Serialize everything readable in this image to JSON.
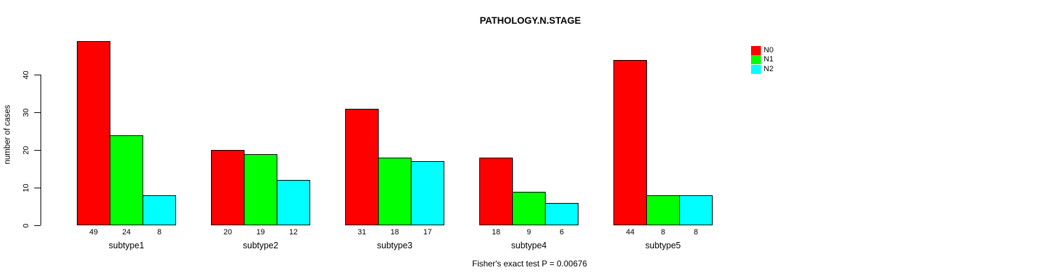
{
  "chart_data": {
    "type": "bar",
    "title": "PATHOLOGY.N.STAGE",
    "categories": [
      "subtype1",
      "subtype2",
      "subtype3",
      "subtype4",
      "subtype5"
    ],
    "series": [
      {
        "name": "N0",
        "color": "#ff0000",
        "values": [
          49,
          20,
          31,
          18,
          44
        ]
      },
      {
        "name": "N1",
        "color": "#00ff00",
        "values": [
          24,
          19,
          18,
          9,
          8
        ]
      },
      {
        "name": "N2",
        "color": "#00ffff",
        "values": [
          8,
          12,
          17,
          6,
          8
        ]
      }
    ],
    "xlabel": "",
    "ylabel": "number of cases",
    "yticks": [
      0,
      10,
      20,
      30,
      40
    ],
    "ylim": [
      0,
      49
    ],
    "grid": false,
    "bar_outline_color": "#000000",
    "value_labels_shown": true,
    "legend_position": "top-right",
    "legend_entries": [
      "N0",
      "N1",
      "N2"
    ],
    "annotation": "Fisher's exact test P = 0.00676"
  }
}
